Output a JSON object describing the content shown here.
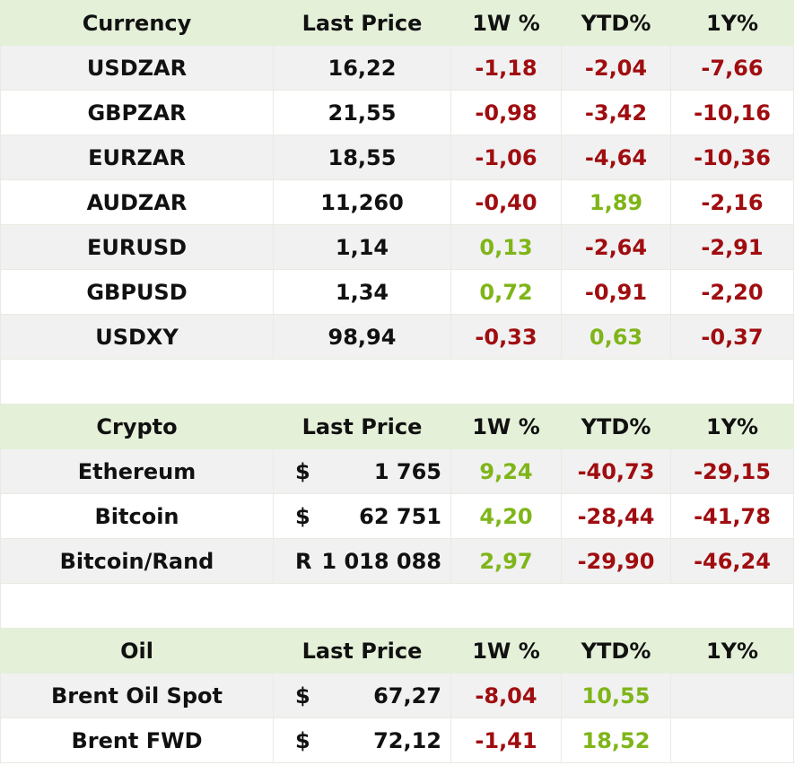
{
  "colors": {
    "header_bg": "#e4f0d8",
    "negative": "#a00d10",
    "positive": "#7fb519",
    "stripe": "#f1f1f1"
  },
  "currency": {
    "headers": [
      "Currency",
      "Last Price",
      "1W %",
      "YTD%",
      "1Y%"
    ],
    "rows": [
      {
        "name": "USDZAR",
        "price": "16,22",
        "w1": "-1,18",
        "ytd": "-2,04",
        "y1": "-7,66"
      },
      {
        "name": "GBPZAR",
        "price": "21,55",
        "w1": "-0,98",
        "ytd": "-3,42",
        "y1": "-10,16"
      },
      {
        "name": "EURZAR",
        "price": "18,55",
        "w1": "-1,06",
        "ytd": "-4,64",
        "y1": "-10,36"
      },
      {
        "name": "AUDZAR",
        "price": "11,260",
        "w1": "-0,40",
        "ytd": "1,89",
        "y1": "-2,16"
      },
      {
        "name": "EURUSD",
        "price": "1,14",
        "w1": "0,13",
        "ytd": "-2,64",
        "y1": "-2,91"
      },
      {
        "name": "GBPUSD",
        "price": "1,34",
        "w1": "0,72",
        "ytd": "-0,91",
        "y1": "-2,20"
      },
      {
        "name": "USDXY",
        "price": "98,94",
        "w1": "-0,33",
        "ytd": "0,63",
        "y1": "-0,37"
      }
    ]
  },
  "crypto": {
    "headers": [
      "Crypto",
      "Last Price",
      "1W %",
      "YTD%",
      "1Y%"
    ],
    "rows": [
      {
        "name": "Ethereum",
        "symbol": "$",
        "price": "1 765",
        "w1": "9,24",
        "ytd": "-40,73",
        "y1": "-29,15"
      },
      {
        "name": "Bitcoin",
        "symbol": "$",
        "price": "62 751",
        "w1": "4,20",
        "ytd": "-28,44",
        "y1": "-41,78"
      },
      {
        "name": "Bitcoin/Rand",
        "symbol": "R",
        "price": "1 018 088",
        "w1": "2,97",
        "ytd": "-29,90",
        "y1": "-46,24"
      }
    ]
  },
  "oil": {
    "headers": [
      "Oil",
      "Last Price",
      "1W %",
      "YTD%",
      "1Y%"
    ],
    "rows": [
      {
        "name": "Brent Oil Spot",
        "symbol": "$",
        "price": "67,27",
        "w1": "-8,04",
        "ytd": "10,55",
        "y1": ""
      },
      {
        "name": "Brent FWD",
        "symbol": "$",
        "price": "72,12",
        "w1": "-1,41",
        "ytd": "18,52",
        "y1": ""
      }
    ]
  }
}
